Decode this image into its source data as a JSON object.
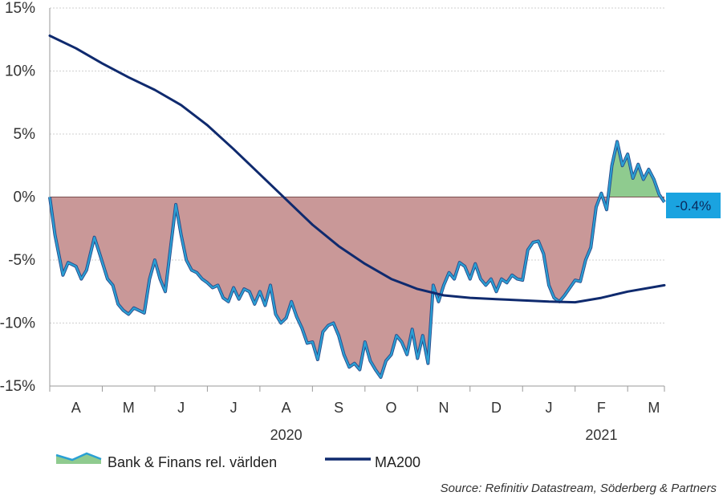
{
  "chart_data": {
    "type": "area",
    "ylim": [
      -15,
      15
    ],
    "y_ticks": [
      15,
      10,
      5,
      0,
      -5,
      -10,
      -15
    ],
    "y_tick_labels": [
      "15%",
      "10%",
      "5%",
      "0%",
      "-5%",
      "-10%",
      "-15%"
    ],
    "month_labels": [
      "A",
      "M",
      "J",
      "J",
      "A",
      "S",
      "O",
      "N",
      "D",
      "J",
      "F",
      "M"
    ],
    "year_labels": [
      "2020",
      "2021"
    ],
    "grid": true,
    "legend_position": "bottom",
    "x_unit": "month index (0 = start of April 2020)",
    "series": [
      {
        "name": "Bank & Finans rel. världen",
        "color": "#2aa0d4",
        "fill_negative": "#c99898",
        "fill_positive": "#8fcb8f",
        "x": [
          0,
          0.1,
          0.25,
          0.35,
          0.5,
          0.6,
          0.7,
          0.85,
          0.95,
          1.1,
          1.2,
          1.3,
          1.4,
          1.5,
          1.6,
          1.7,
          1.8,
          1.9,
          2.0,
          2.1,
          2.2,
          2.3,
          2.4,
          2.5,
          2.6,
          2.7,
          2.8,
          2.9,
          3.0,
          3.1,
          3.2,
          3.3,
          3.4,
          3.5,
          3.6,
          3.7,
          3.8,
          3.9,
          4.0,
          4.1,
          4.2,
          4.3,
          4.4,
          4.5,
          4.6,
          4.7,
          4.8,
          4.9,
          5.0,
          5.1,
          5.2,
          5.3,
          5.4,
          5.5,
          5.6,
          5.7,
          5.8,
          5.9,
          6.0,
          6.1,
          6.2,
          6.3,
          6.4,
          6.5,
          6.6,
          6.7,
          6.8,
          6.9,
          7.0,
          7.1,
          7.2,
          7.3,
          7.4,
          7.5,
          7.6,
          7.7,
          7.8,
          7.9,
          8.0,
          8.1,
          8.2,
          8.3,
          8.4,
          8.5,
          8.6,
          8.7,
          8.8,
          8.9,
          9.0,
          9.1,
          9.2,
          9.3,
          9.4,
          9.5,
          9.6,
          9.7,
          9.8,
          9.9,
          10.0,
          10.1,
          10.2,
          10.3,
          10.4,
          10.5,
          10.6,
          10.7,
          10.8,
          10.9,
          11.0,
          11.1,
          11.2,
          11.3,
          11.4,
          11.5,
          11.6,
          11.7
        ],
        "y": [
          0,
          -3,
          -6.2,
          -5.2,
          -5.5,
          -6.5,
          -5.8,
          -3.2,
          -4.5,
          -6.5,
          -7.0,
          -8.5,
          -9.0,
          -9.3,
          -8.8,
          -9.0,
          -9.2,
          -6.5,
          -5,
          -6.5,
          -7.5,
          -4,
          -0.6,
          -3,
          -5,
          -5.8,
          -6,
          -6.5,
          -6.8,
          -7.2,
          -7,
          -8,
          -8.3,
          -7.2,
          -8.1,
          -7.3,
          -7.5,
          -8.5,
          -7.5,
          -8.6,
          -7,
          -9.3,
          -10,
          -9.6,
          -8.3,
          -9.5,
          -10.4,
          -11.6,
          -11.5,
          -12.9,
          -10.7,
          -10.2,
          -10.0,
          -11.0,
          -12.5,
          -13.5,
          -13.2,
          -13.7,
          -11.5,
          -13.0,
          -13.7,
          -14.3,
          -13.0,
          -12.5,
          -11.0,
          -11.5,
          -12.5,
          -10.5,
          -12.8,
          -11.0,
          -13.2,
          -7.0,
          -8.3,
          -7.0,
          -6.0,
          -6.5,
          -5.2,
          -5.5,
          -6.5,
          -5.3,
          -6.5,
          -7.0,
          -6.5,
          -7.5,
          -6.5,
          -6.8,
          -6.2,
          -6.5,
          -6.6,
          -4.2,
          -3.6,
          -3.5,
          -4.5,
          -7.0,
          -8.0,
          -8.3,
          -7.8,
          -7.2,
          -6.6,
          -6.7,
          -5.0,
          -4.0,
          -0.8,
          0.3,
          -1.0,
          2.5,
          4.4,
          2.5,
          3.4,
          1.5,
          2.6,
          1.4,
          2.2,
          1.4,
          0.2,
          -0.4
        ]
      },
      {
        "name": "MA200",
        "color": "#0f2a6e",
        "x": [
          0,
          0.5,
          1,
          1.5,
          2,
          2.5,
          3,
          3.5,
          4,
          4.5,
          5,
          5.5,
          6,
          6.5,
          7,
          7.5,
          8,
          8.5,
          9,
          9.5,
          10,
          10.5,
          11,
          11.7
        ],
        "y": [
          12.8,
          11.8,
          10.6,
          9.5,
          8.5,
          7.3,
          5.7,
          3.8,
          1.8,
          -0.2,
          -2.2,
          -3.9,
          -5.3,
          -6.5,
          -7.3,
          -7.8,
          -8.0,
          -8.1,
          -8.2,
          -8.3,
          -8.35,
          -8.0,
          -7.5,
          -7.0
        ]
      }
    ],
    "last_value_label": "-0.4%",
    "last_value_color": "#1aa3e0"
  },
  "source_text": "Source: Refinitiv Datastream, Söderberg & Partners"
}
